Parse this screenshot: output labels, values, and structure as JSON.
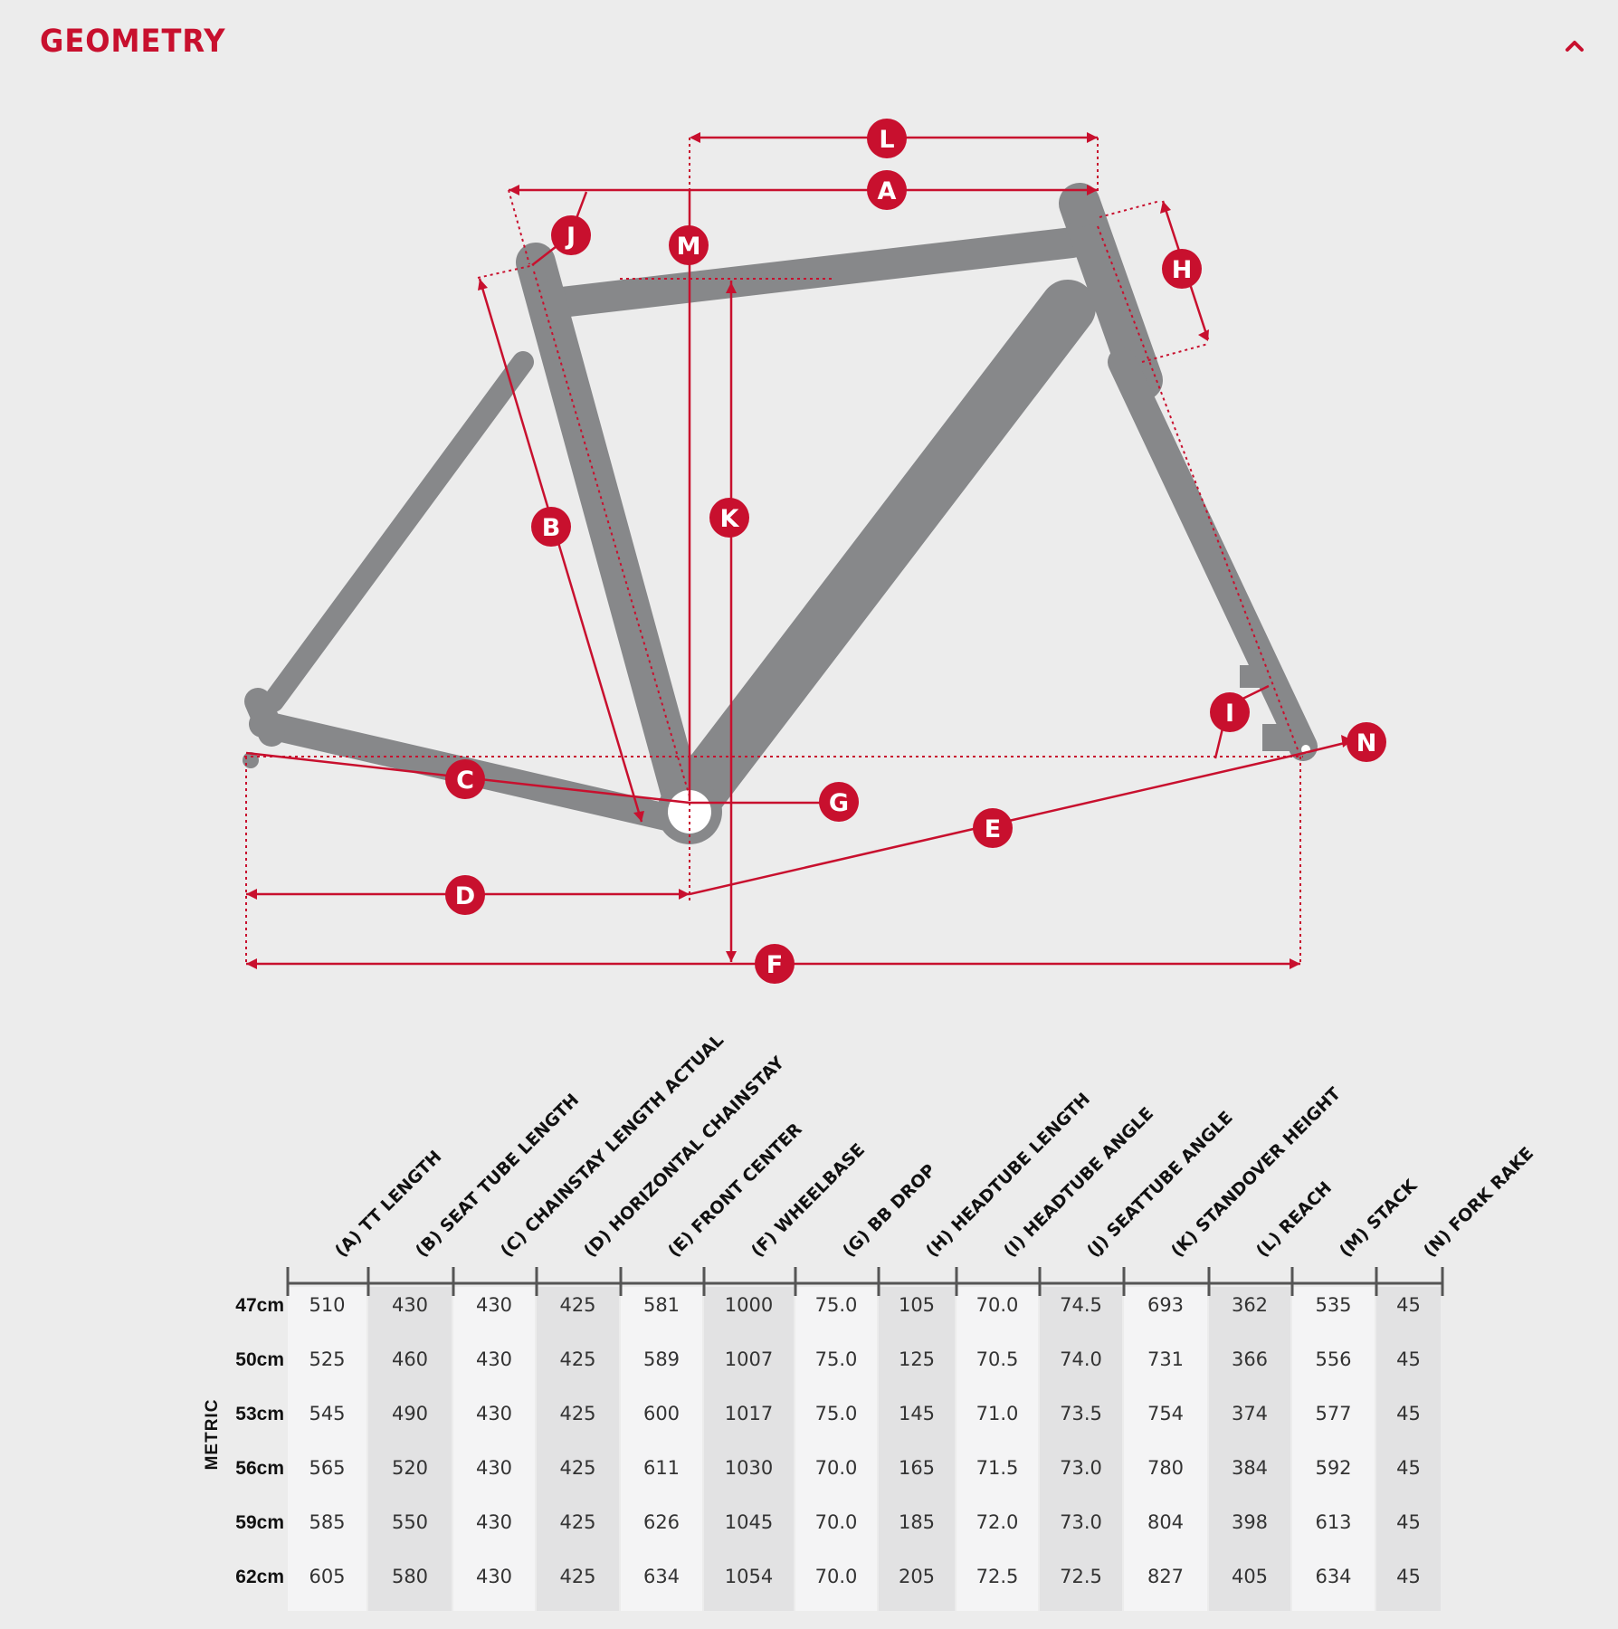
{
  "header": {
    "title": "GEOMETRY",
    "collapse_icon": "chevron-up-icon"
  },
  "colors": {
    "accent": "#c8102e",
    "frame": "#87888a",
    "background": "#ececec"
  },
  "diagram": {
    "labels": [
      "A",
      "B",
      "C",
      "D",
      "E",
      "F",
      "G",
      "H",
      "I",
      "J",
      "K",
      "L",
      "M",
      "N"
    ]
  },
  "table": {
    "unit_label": "METRIC",
    "columns": [
      "(A) TT LENGTH",
      "(B) SEAT TUBE LENGTH",
      "(C) CHAINSTAY LENGTH ACTUAL",
      "(D) HORIZONTAL CHAINSTAY",
      "(E) FRONT CENTER",
      "(F) WHEELBASE",
      "(G) BB DROP",
      "(H) HEADTUBE LENGTH",
      "(I) HEADTUBE ANGLE",
      "(J) SEATTUBE ANGLE",
      "(K) STANDOVER HEIGHT",
      "(L) REACH",
      "(M) STACK",
      "(N) FORK RAKE"
    ],
    "rows": [
      {
        "size": "47cm",
        "values": [
          "510",
          "430",
          "430",
          "425",
          "581",
          "1000",
          "75.0",
          "105",
          "70.0",
          "74.5",
          "693",
          "362",
          "535",
          "45"
        ]
      },
      {
        "size": "50cm",
        "values": [
          "525",
          "460",
          "430",
          "425",
          "589",
          "1007",
          "75.0",
          "125",
          "70.5",
          "74.0",
          "731",
          "366",
          "556",
          "45"
        ]
      },
      {
        "size": "53cm",
        "values": [
          "545",
          "490",
          "430",
          "425",
          "600",
          "1017",
          "75.0",
          "145",
          "71.0",
          "73.5",
          "754",
          "374",
          "577",
          "45"
        ]
      },
      {
        "size": "56cm",
        "values": [
          "565",
          "520",
          "430",
          "425",
          "611",
          "1030",
          "70.0",
          "165",
          "71.5",
          "73.0",
          "780",
          "384",
          "592",
          "45"
        ]
      },
      {
        "size": "59cm",
        "values": [
          "585",
          "550",
          "430",
          "425",
          "626",
          "1045",
          "70.0",
          "185",
          "72.0",
          "73.0",
          "804",
          "398",
          "613",
          "45"
        ]
      },
      {
        "size": "62cm",
        "values": [
          "605",
          "580",
          "430",
          "425",
          "634",
          "1054",
          "70.0",
          "205",
          "72.5",
          "72.5",
          "827",
          "405",
          "634",
          "45"
        ]
      }
    ]
  }
}
